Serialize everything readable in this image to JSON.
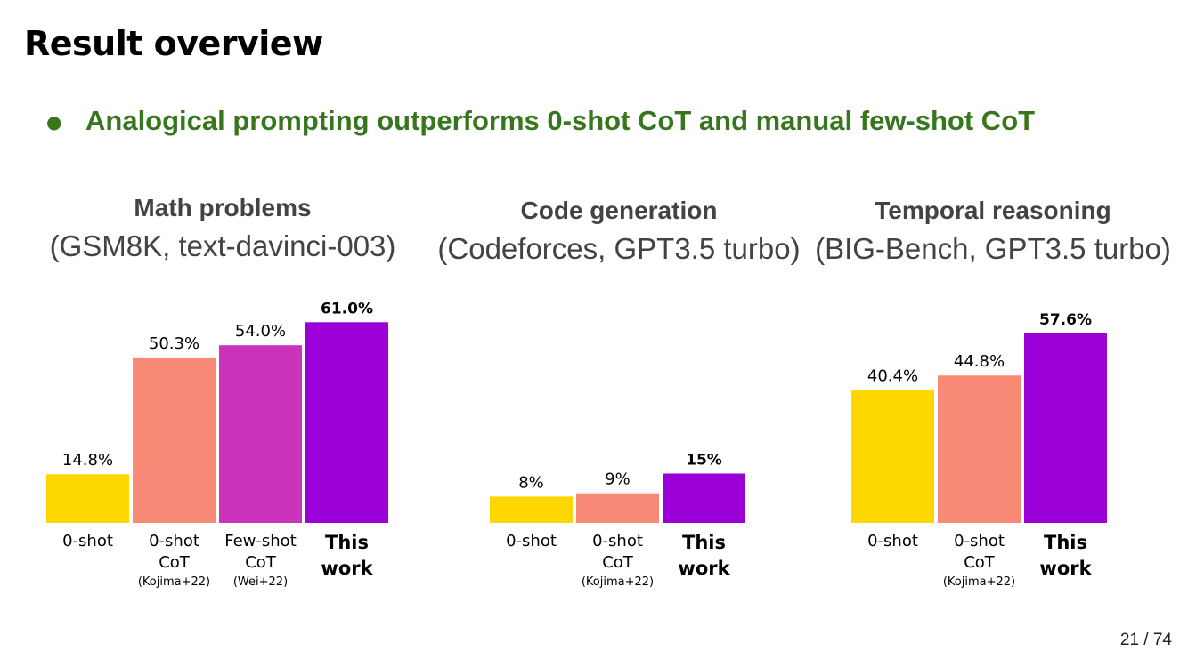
{
  "slide": {
    "title": "Result overview",
    "bullet": "Analogical prompting outperforms 0-shot CoT and manual few-shot CoT",
    "page_number": "21 / 74"
  },
  "colors": {
    "bullet": "#38761d",
    "header": "#434343",
    "bar_zero_shot": "#ffd700",
    "bar_zero_shot_cot": "#f98a78",
    "bar_few_shot_cot": "#cc33bb",
    "bar_this_work": "#9b00d7"
  },
  "chart_data": [
    {
      "type": "bar",
      "title": "Math problems",
      "subtitle": "(GSM8K, text-davinci-003)",
      "categories": [
        "0-shot",
        "0-shot CoT",
        "Few-shot CoT",
        "This work"
      ],
      "category_citations": [
        "",
        "(Kojima+22)",
        "(Wei+22)",
        ""
      ],
      "values": [
        14.8,
        50.3,
        54.0,
        61.0
      ],
      "data_labels": [
        "14.8%",
        "50.3%",
        "54.0%",
        "61.0%"
      ],
      "highlight": [
        false,
        false,
        false,
        true
      ],
      "colors": [
        "#ffd700",
        "#f98a78",
        "#cc33bb",
        "#9b00d7"
      ],
      "ylim": [
        0,
        100
      ]
    },
    {
      "type": "bar",
      "title": "Code generation",
      "subtitle": "(Codeforces, GPT3.5 turbo)",
      "categories": [
        "0-shot",
        "0-shot CoT",
        "This work"
      ],
      "category_citations": [
        "",
        "(Kojima+22)",
        ""
      ],
      "values": [
        8,
        9,
        15
      ],
      "data_labels": [
        "8%",
        "9%",
        "15%"
      ],
      "highlight": [
        false,
        false,
        true
      ],
      "colors": [
        "#ffd700",
        "#f98a78",
        "#9b00d7"
      ],
      "ylim": [
        0,
        100
      ]
    },
    {
      "type": "bar",
      "title": "Temporal reasoning",
      "subtitle": "(BIG-Bench, GPT3.5 turbo)",
      "categories": [
        "0-shot",
        "0-shot CoT",
        "This work"
      ],
      "category_citations": [
        "",
        "(Kojima+22)",
        ""
      ],
      "values": [
        40.4,
        44.8,
        57.6
      ],
      "data_labels": [
        "40.4%",
        "44.8%",
        "57.6%"
      ],
      "highlight": [
        false,
        false,
        true
      ],
      "colors": [
        "#ffd700",
        "#f98a78",
        "#9b00d7"
      ],
      "ylim": [
        0,
        100
      ]
    }
  ]
}
